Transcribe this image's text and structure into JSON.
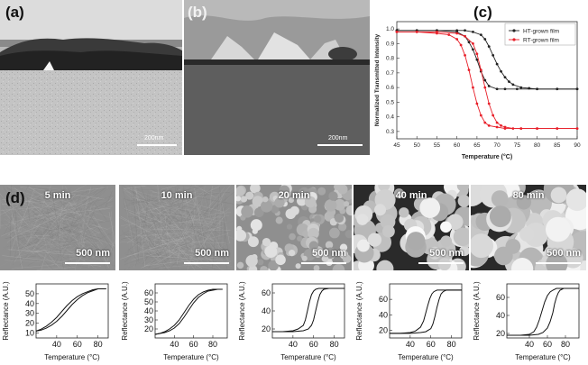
{
  "panels": {
    "a": {
      "label": "(a)",
      "scale_bar": "200nm"
    },
    "b": {
      "label": "(b)",
      "scale_bar": "200nm"
    },
    "c": {
      "label": "(c)"
    },
    "d": {
      "label": "(d)"
    }
  },
  "sem_images": [
    {
      "time": "5 min",
      "scale": "500 nm"
    },
    {
      "time": "10 min",
      "scale": "500 nm"
    },
    {
      "time": "20 min",
      "scale": "500 nm"
    },
    {
      "time": "40 min",
      "scale": "500 nm"
    },
    {
      "time": "80 min",
      "scale": "500 nm"
    }
  ],
  "colors": {
    "ht": "#222222",
    "rt": "#e8202a"
  },
  "chart_data": [
    {
      "type": "line",
      "xlabel": "Temperature (°C)",
      "ylabel": "Normalized Transmitted Intensity",
      "xlim": [
        45,
        90
      ],
      "ylim": [
        0.25,
        1.05
      ],
      "xticks": [
        "45",
        "50",
        "55",
        "60",
        "65",
        "70",
        "75",
        "80",
        "85",
        "90"
      ],
      "yticks": [
        "0.3",
        "0.4",
        "0.5",
        "0.6",
        "0.7",
        "0.8",
        "0.9",
        "1.0"
      ],
      "legend_position": "top-right",
      "series": [
        {
          "name": "HT-grown film",
          "color": "#222222",
          "x": [
            45,
            50,
            55,
            60,
            62,
            64,
            66,
            67,
            68,
            69,
            70,
            71,
            72,
            73,
            74,
            76,
            78,
            80,
            85,
            90
          ],
          "y": [
            0.99,
            0.99,
            0.99,
            0.99,
            0.99,
            0.98,
            0.96,
            0.93,
            0.88,
            0.82,
            0.76,
            0.71,
            0.67,
            0.64,
            0.62,
            0.6,
            0.595,
            0.59,
            0.59,
            0.59
          ]
        },
        {
          "name": "HT-grown film",
          "color": "#222222",
          "x": [
            45,
            50,
            55,
            60,
            62,
            63,
            64,
            65,
            66,
            67,
            68,
            70,
            72,
            75,
            80,
            85,
            90
          ],
          "y": [
            0.99,
            0.99,
            0.99,
            0.98,
            0.95,
            0.91,
            0.86,
            0.79,
            0.71,
            0.65,
            0.61,
            0.59,
            0.59,
            0.59,
            0.59,
            0.59,
            0.59
          ]
        },
        {
          "name": "RT-grown film",
          "color": "#e8202a",
          "x": [
            45,
            50,
            55,
            60,
            62,
            64,
            65,
            66,
            67,
            68,
            69,
            70,
            71,
            72,
            74,
            76,
            80,
            85,
            90
          ],
          "y": [
            0.98,
            0.98,
            0.98,
            0.97,
            0.95,
            0.9,
            0.83,
            0.72,
            0.6,
            0.49,
            0.41,
            0.36,
            0.34,
            0.33,
            0.32,
            0.32,
            0.32,
            0.32,
            0.32
          ]
        },
        {
          "name": "RT-grown film",
          "color": "#e8202a",
          "x": [
            45,
            50,
            55,
            58,
            60,
            61,
            62,
            63,
            64,
            65,
            66,
            67,
            68,
            70,
            72,
            76,
            80,
            85,
            90
          ],
          "y": [
            0.98,
            0.98,
            0.97,
            0.96,
            0.93,
            0.89,
            0.82,
            0.72,
            0.6,
            0.49,
            0.41,
            0.36,
            0.34,
            0.33,
            0.32,
            0.32,
            0.32,
            0.32,
            0.32
          ]
        }
      ]
    },
    {
      "type": "line",
      "xlabel": "Temperature (°C)",
      "ylabel": "Reflectance (A.U.)",
      "xlim": [
        20,
        90
      ],
      "ylim": [
        5,
        60
      ],
      "xticks": [
        "40",
        "60",
        "80"
      ],
      "yticks": [
        "10",
        "20",
        "30",
        "40",
        "50"
      ],
      "series": [
        {
          "x": [
            20,
            25,
            30,
            35,
            40,
            45,
            50,
            55,
            60,
            65,
            70,
            75,
            80,
            85,
            88
          ],
          "y": [
            12,
            13,
            15,
            18,
            22,
            27,
            33,
            39,
            44,
            48,
            51,
            53,
            55,
            55,
            55
          ]
        },
        {
          "x": [
            20,
            25,
            30,
            35,
            40,
            45,
            50,
            55,
            60,
            65,
            70,
            75,
            80,
            85,
            88
          ],
          "y": [
            12,
            14,
            17,
            21,
            26,
            32,
            38,
            43,
            47,
            50,
            52,
            54,
            55,
            55,
            55
          ]
        }
      ]
    },
    {
      "type": "line",
      "xlabel": "Temperature (°C)",
      "ylabel": "Reflectance (A.U.)",
      "xlim": [
        20,
        95
      ],
      "ylim": [
        10,
        70
      ],
      "xticks": [
        "40",
        "60",
        "80"
      ],
      "yticks": [
        "20",
        "30",
        "40",
        "50",
        "60"
      ],
      "series": [
        {
          "x": [
            20,
            25,
            30,
            35,
            40,
            45,
            50,
            55,
            60,
            65,
            70,
            75,
            80,
            85,
            90
          ],
          "y": [
            14,
            15,
            16,
            18,
            21,
            26,
            33,
            41,
            49,
            55,
            59,
            62,
            63,
            64,
            64
          ]
        },
        {
          "x": [
            20,
            25,
            30,
            35,
            40,
            45,
            50,
            55,
            60,
            65,
            70,
            75,
            80,
            85,
            90
          ],
          "y": [
            14,
            15,
            17,
            20,
            24,
            30,
            38,
            46,
            53,
            58,
            61,
            63,
            64,
            64,
            64
          ]
        }
      ]
    },
    {
      "type": "line",
      "xlabel": "Temperature (°C)",
      "ylabel": "Reflectance (A.U.)",
      "xlim": [
        20,
        90
      ],
      "ylim": [
        10,
        70
      ],
      "xticks": [
        "40",
        "60",
        "80"
      ],
      "yticks": [
        "20",
        "40",
        "60"
      ],
      "series": [
        {
          "x": [
            20,
            30,
            40,
            50,
            55,
            58,
            60,
            62,
            64,
            66,
            68,
            70,
            75,
            80,
            90
          ],
          "y": [
            17,
            17,
            17,
            18,
            20,
            24,
            30,
            40,
            50,
            58,
            62,
            64,
            65,
            65,
            65
          ]
        },
        {
          "x": [
            20,
            30,
            40,
            45,
            50,
            52,
            54,
            56,
            58,
            60,
            62,
            65,
            70,
            80,
            90
          ],
          "y": [
            17,
            17,
            18,
            20,
            24,
            30,
            40,
            50,
            58,
            62,
            64,
            65,
            65,
            65,
            65
          ]
        }
      ]
    },
    {
      "type": "line",
      "xlabel": "Temperature (°C)",
      "ylabel": "Reflectance (A.U.)",
      "xlim": [
        20,
        90
      ],
      "ylim": [
        10,
        80
      ],
      "xticks": [
        "40",
        "60",
        "80"
      ],
      "yticks": [
        "20",
        "40",
        "60"
      ],
      "series": [
        {
          "x": [
            20,
            30,
            40,
            50,
            55,
            60,
            62,
            64,
            66,
            68,
            70,
            72,
            75,
            80,
            90
          ],
          "y": [
            16,
            16,
            16,
            17,
            18,
            22,
            28,
            38,
            50,
            60,
            67,
            70,
            72,
            72,
            72
          ]
        },
        {
          "x": [
            20,
            30,
            40,
            45,
            50,
            53,
            55,
            57,
            59,
            61,
            63,
            66,
            70,
            80,
            90
          ],
          "y": [
            16,
            16,
            17,
            19,
            24,
            32,
            42,
            52,
            61,
            67,
            70,
            72,
            72,
            72,
            72
          ]
        }
      ]
    },
    {
      "type": "line",
      "xlabel": "Temperature (°C)",
      "ylabel": "Reflectance (A.U.)",
      "xlim": [
        15,
        95
      ],
      "ylim": [
        15,
        75
      ],
      "xticks": [
        "40",
        "60",
        "80"
      ],
      "yticks": [
        "20",
        "40",
        "60"
      ],
      "series": [
        {
          "x": [
            15,
            30,
            40,
            50,
            55,
            60,
            63,
            66,
            68,
            70,
            72,
            74,
            78,
            85,
            95
          ],
          "y": [
            18,
            18,
            18,
            19,
            21,
            26,
            33,
            43,
            53,
            60,
            65,
            68,
            70,
            70,
            70
          ]
        },
        {
          "x": [
            15,
            30,
            40,
            45,
            48,
            51,
            54,
            57,
            60,
            63,
            66,
            70,
            75,
            85,
            95
          ],
          "y": [
            18,
            18,
            19,
            22,
            27,
            35,
            45,
            55,
            62,
            66,
            68,
            70,
            70,
            70,
            70
          ]
        }
      ]
    }
  ]
}
